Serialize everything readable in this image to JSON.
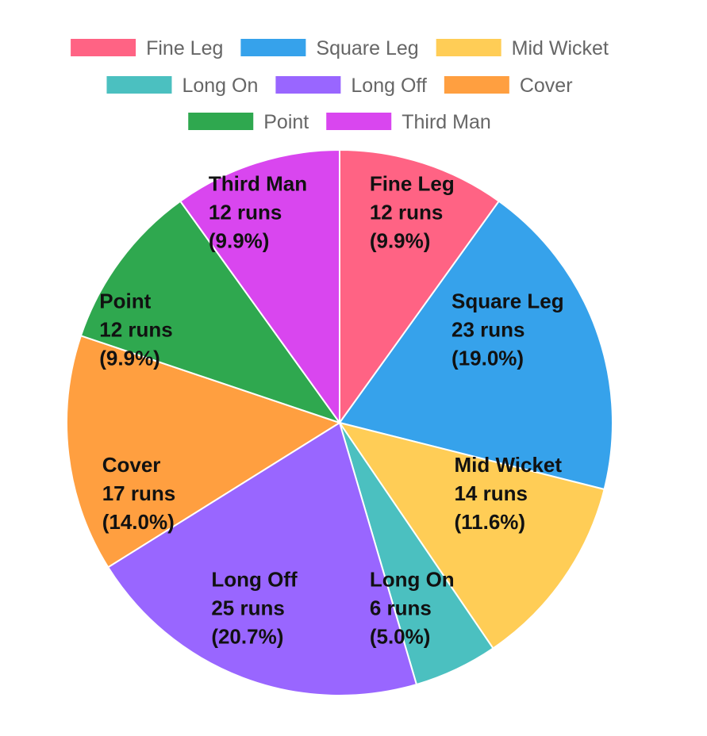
{
  "chart_data": {
    "type": "pie",
    "title": "",
    "unit_suffix": "runs",
    "legend_position": "top",
    "series": [
      {
        "name": "Fine Leg",
        "value": 12,
        "percent": "9.9%",
        "color": "#ff6384"
      },
      {
        "name": "Square Leg",
        "value": 23,
        "percent": "19.0%",
        "color": "#36a2eb"
      },
      {
        "name": "Mid Wicket",
        "value": 14,
        "percent": "11.6%",
        "color": "#ffcd56"
      },
      {
        "name": "Long On",
        "value": 6,
        "percent": "5.0%",
        "color": "#4bc0c0"
      },
      {
        "name": "Long Off",
        "value": 25,
        "percent": "20.7%",
        "color": "#9966ff"
      },
      {
        "name": "Cover",
        "value": 17,
        "percent": "14.0%",
        "color": "#ff9f40"
      },
      {
        "name": "Point",
        "value": 12,
        "percent": "9.9%",
        "color": "#2fa84f"
      },
      {
        "name": "Third Man",
        "value": 12,
        "percent": "9.9%",
        "color": "#d946ef"
      }
    ]
  }
}
